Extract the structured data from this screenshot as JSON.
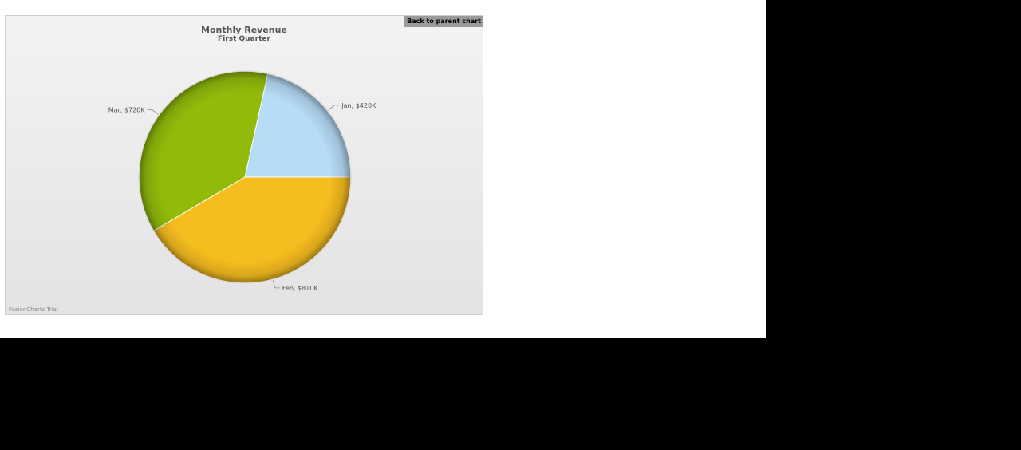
{
  "chart": {
    "back_label": "Back to parent chart",
    "watermark": "FusionCharts Trial"
  },
  "chart_data": {
    "type": "pie",
    "title": "Monthly Revenue",
    "subtitle": "First Quarter",
    "slices": [
      {
        "label": "Jan, $420K",
        "category": "Jan",
        "value": 420,
        "color": "#b7dcf7",
        "edge": "#7f9fbf"
      },
      {
        "label": "Mar, $720K",
        "category": "Mar",
        "value": 720,
        "color": "#91bb0b",
        "edge": "#4f6a00"
      },
      {
        "label": "Feb, $810K",
        "category": "Feb",
        "value": 810,
        "color": "#f6bd1f",
        "edge": "#a97a05"
      }
    ],
    "legend": "none"
  }
}
